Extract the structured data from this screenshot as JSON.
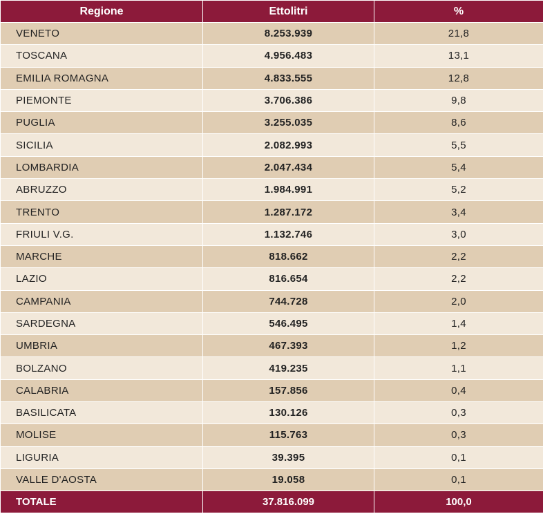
{
  "table": {
    "headers": [
      "Regione",
      "Ettolitri",
      "%"
    ],
    "rows": [
      [
        "VENETO",
        "8.253.939",
        "21,8"
      ],
      [
        "TOSCANA",
        "4.956.483",
        "13,1"
      ],
      [
        "EMILIA  ROMAGNA",
        "4.833.555",
        "12,8"
      ],
      [
        "PIEMONTE",
        "3.706.386",
        "9,8"
      ],
      [
        "PUGLIA",
        "3.255.035",
        "8,6"
      ],
      [
        "SICILIA",
        "2.082.993",
        "5,5"
      ],
      [
        "LOMBARDIA",
        "2.047.434",
        "5,4"
      ],
      [
        "ABRUZZO",
        "1.984.991",
        "5,2"
      ],
      [
        "TRENTO",
        "1.287.172",
        "3,4"
      ],
      [
        "FRIULI  V.G.",
        "1.132.746",
        "3,0"
      ],
      [
        "MARCHE",
        "818.662",
        "2,2"
      ],
      [
        "LAZIO",
        "816.654",
        "2,2"
      ],
      [
        "CAMPANIA",
        "744.728",
        "2,0"
      ],
      [
        "SARDEGNA",
        "546.495",
        "1,4"
      ],
      [
        "UMBRIA",
        "467.393",
        "1,2"
      ],
      [
        "BOLZANO",
        "419.235",
        "1,1"
      ],
      [
        "CALABRIA",
        "157.856",
        "0,4"
      ],
      [
        "BASILICATA",
        "130.126",
        "0,3"
      ],
      [
        "MOLISE",
        "115.763",
        "0,3"
      ],
      [
        "LIGURIA",
        "39.395",
        "0,1"
      ],
      [
        "VALLE D'AOSTA",
        "19.058",
        "0,1"
      ]
    ],
    "total": [
      "TOTALE",
      "37.816.099",
      "100,0"
    ]
  },
  "colors": {
    "header_bg": "#8c1a3a",
    "row_dark": "#e0cdb3",
    "row_light": "#f2e8da"
  }
}
